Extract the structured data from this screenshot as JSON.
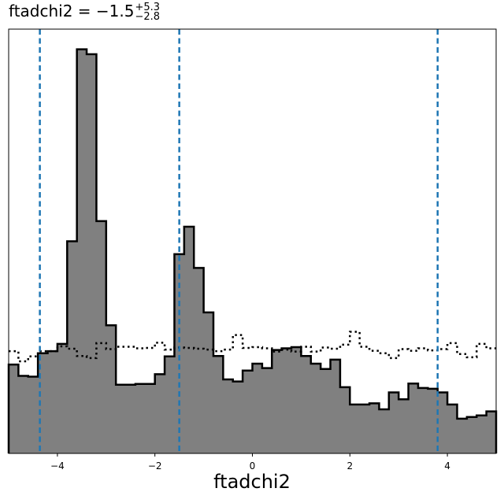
{
  "title": {
    "param": "ftadchi2",
    "equals": " = ",
    "value": "−1.5",
    "upper": "+5.3",
    "lower": "−2.8"
  },
  "chart_data": {
    "type": "histogram",
    "xlabel": "ftadchi2",
    "ylabel": "",
    "xlim": [
      -5,
      5
    ],
    "ylim": [
      0,
      1.05
    ],
    "x_ticks": [
      {
        "value": -4,
        "label": "−4"
      },
      {
        "value": -2,
        "label": "−2"
      },
      {
        "value": 0,
        "label": "0"
      },
      {
        "value": 2,
        "label": "2"
      },
      {
        "value": 4,
        "label": "4"
      }
    ],
    "bin_edges": [
      -5.0,
      -4.8,
      -4.6,
      -4.4,
      -4.2,
      -4.0,
      -3.8,
      -3.6,
      -3.4,
      -3.2,
      -3.0,
      -2.8,
      -2.6,
      -2.4,
      -2.2,
      -2.0,
      -1.8,
      -1.6,
      -1.4,
      -1.2,
      -1.0,
      -0.8,
      -0.6,
      -0.4,
      -0.2,
      0.0,
      0.2,
      0.4,
      0.6,
      0.8,
      1.0,
      1.2,
      1.4,
      1.6,
      1.8,
      2.0,
      2.2,
      2.4,
      2.6,
      2.8,
      3.0,
      3.2,
      3.4,
      3.6,
      3.8,
      4.0,
      4.2,
      4.4,
      4.6,
      4.8,
      5.0
    ],
    "series": [
      {
        "style": "filled-step",
        "fill_color": "#808080",
        "edge_color": "#000000",
        "values": [
          0.22,
          0.192,
          0.19,
          0.248,
          0.253,
          0.271,
          0.525,
          1.0,
          0.988,
          0.575,
          0.317,
          0.17,
          0.17,
          0.172,
          0.172,
          0.196,
          0.24,
          0.493,
          0.561,
          0.459,
          0.349,
          0.241,
          0.183,
          0.178,
          0.205,
          0.222,
          0.211,
          0.256,
          0.26,
          0.263,
          0.241,
          0.222,
          0.209,
          0.232,
          0.164,
          0.121,
          0.121,
          0.124,
          0.109,
          0.151,
          0.134,
          0.173,
          0.162,
          0.16,
          0.151,
          0.121,
          0.086,
          0.09,
          0.094,
          0.104
        ]
      },
      {
        "style": "dotted-step",
        "edge_color": "#000000",
        "values": [
          0.253,
          0.228,
          0.24,
          0.253,
          0.253,
          0.265,
          0.259,
          0.241,
          0.236,
          0.273,
          0.258,
          0.264,
          0.264,
          0.26,
          0.261,
          0.274,
          0.257,
          0.262,
          0.261,
          0.259,
          0.257,
          0.253,
          0.257,
          0.293,
          0.261,
          0.263,
          0.26,
          0.252,
          0.257,
          0.252,
          0.264,
          0.252,
          0.262,
          0.259,
          0.269,
          0.301,
          0.264,
          0.254,
          0.248,
          0.236,
          0.258,
          0.254,
          0.26,
          0.255,
          0.258,
          0.273,
          0.246,
          0.238,
          0.271,
          0.26
        ]
      }
    ],
    "vlines": {
      "color": "#1f77b4",
      "style": "dashed",
      "values": [
        -4.36,
        -1.5,
        3.8
      ]
    },
    "grid": false,
    "legend": "none"
  }
}
